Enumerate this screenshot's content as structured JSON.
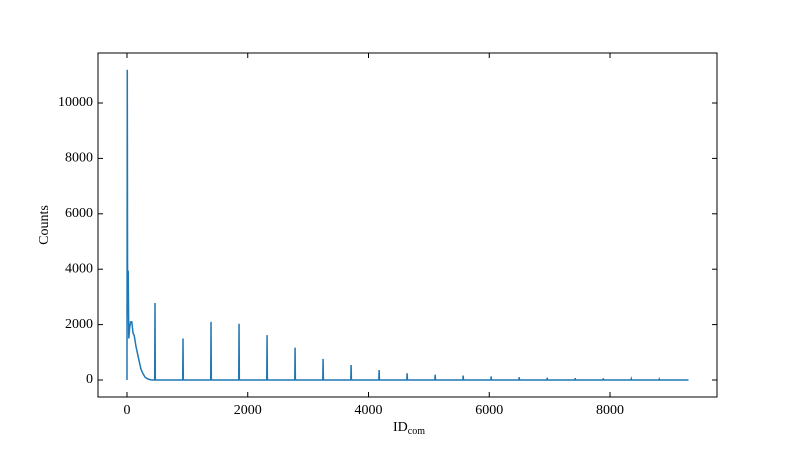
{
  "chart_data": {
    "type": "line",
    "x_label": "ID",
    "x_label_sub": "com",
    "y_label": "Counts",
    "color": "#1f77b4",
    "x": [
      0,
      5,
      10,
      20,
      30,
      45,
      60,
      80,
      100,
      120,
      150,
      180,
      200,
      230,
      260,
      300,
      350,
      400,
      440,
      459,
      464,
      469,
      923,
      928,
      933,
      1387,
      1392,
      1397,
      1851,
      1856,
      1861,
      2315,
      2320,
      2325,
      2779,
      2784,
      2789,
      3243,
      3248,
      3253,
      3707,
      3712,
      3717,
      4171,
      4176,
      4181,
      4635,
      4640,
      4645,
      5099,
      5104,
      5109,
      5563,
      5568,
      5573,
      6027,
      6032,
      6037,
      6491,
      6496,
      6501,
      6955,
      6960,
      6965,
      7419,
      7424,
      7429,
      7883,
      7888,
      7893,
      8347,
      8352,
      8357,
      8811,
      8816,
      8821,
      9300
    ],
    "values": [
      0,
      11200,
      3000,
      3950,
      1500,
      1900,
      2100,
      2100,
      1700,
      1600,
      1200,
      900,
      700,
      400,
      250,
      100,
      30,
      5,
      0,
      0,
      2780,
      0,
      0,
      1500,
      0,
      0,
      2100,
      0,
      0,
      2030,
      0,
      0,
      1620,
      0,
      0,
      1170,
      0,
      0,
      760,
      0,
      0,
      540,
      0,
      0,
      360,
      0,
      0,
      240,
      0,
      0,
      190,
      0,
      0,
      160,
      0,
      0,
      130,
      0,
      0,
      100,
      0,
      0,
      80,
      0,
      0,
      70,
      0,
      0,
      60,
      0,
      0,
      40,
      0,
      0,
      30,
      0,
      0
    ],
    "xlim": [
      -480,
      9772
    ],
    "ylim": [
      -614,
      11805
    ],
    "xticks": [
      0,
      2000,
      4000,
      6000,
      8000
    ],
    "yticks": [
      0,
      2000,
      4000,
      6000,
      8000,
      10000
    ]
  }
}
